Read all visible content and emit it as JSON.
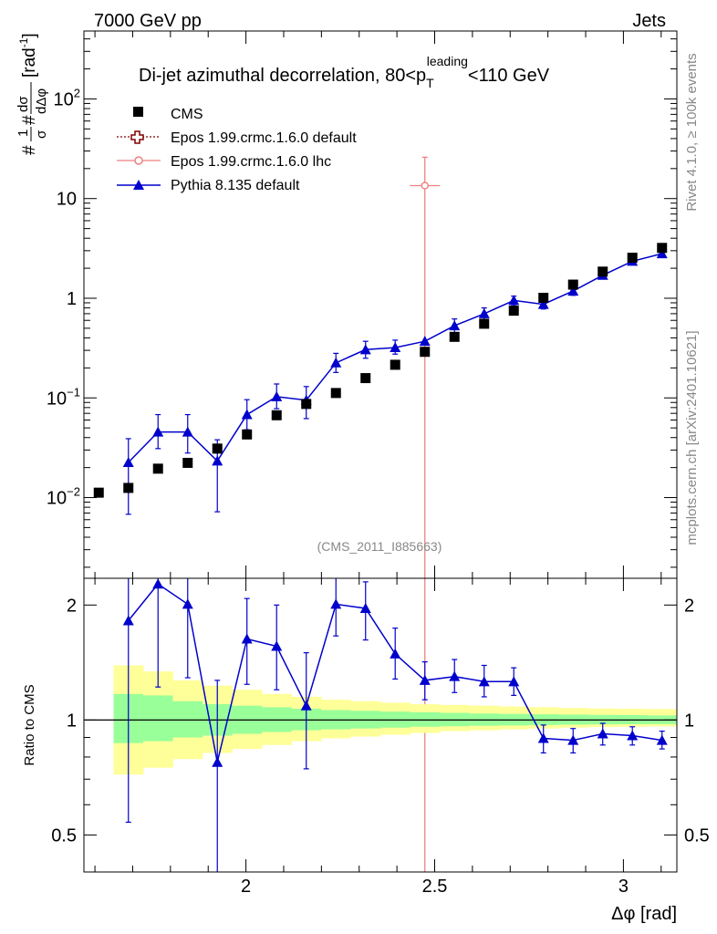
{
  "header": {
    "left": "7000 GeV pp",
    "right": "Jets"
  },
  "side_labels": {
    "rivet": "Rivet 4.1.0, ≥ 100k events",
    "mcplots": "mcplots.cern.ch [arXiv:2401.10621]"
  },
  "colors": {
    "cms": "#000000",
    "epos_default": "#7f0000",
    "epos_lhc": "#f08080",
    "pythia": "#0000cc",
    "band_outer": "#ffff99",
    "band_inner": "#99ff99"
  },
  "chart_data": [
    {
      "type": "scatter",
      "title": "Di-jet azimuthal decorrelation, 80<p_T^leading<110 GeV",
      "title_parts": {
        "prefix": "Di-jet azimuthal decorrelation, 80<p",
        "sub": "T",
        "sup": "leading",
        "suffix": "<110 GeV"
      },
      "ylabel": "#frac{1}{σ} #frac{dσ}{dΔφ} [rad⁻¹]",
      "ylabel_parts": {
        "one": "1",
        "sigma": "σ",
        "dsigma": "dσ",
        "ddphi": "dΔφ",
        "hash": "#",
        "unit": "[rad",
        "unit_sup": "-1",
        "unit_end": "]"
      },
      "yscale": "log",
      "ylim": [
        0.00155,
        480
      ],
      "xlim": [
        1.5708,
        3.1416
      ],
      "y_ticks": [
        {
          "v": 100,
          "label": "10",
          "sup": "2"
        },
        {
          "v": 10,
          "label": "10",
          "sup": ""
        },
        {
          "v": 1,
          "label": "1",
          "sup": ""
        },
        {
          "v": 0.1,
          "label": "10",
          "sup": "−1"
        },
        {
          "v": 0.01,
          "label": "10",
          "sup": "−2"
        }
      ],
      "watermark": "(CMS_2011_I885663)",
      "legend": [
        {
          "name": "CMS",
          "marker": "square"
        },
        {
          "name": "Epos 1.99.crmc.1.6.0 default",
          "marker": "open-cross"
        },
        {
          "name": "Epos 1.99.crmc.1.6.0 lhc",
          "marker": "open-circle"
        },
        {
          "name": "Pythia 8.135 default",
          "marker": "triangle"
        }
      ],
      "series": [
        {
          "name": "CMS",
          "x": [
            1.6101,
            1.6886,
            1.7671,
            1.8457,
            1.9242,
            2.0027,
            2.0813,
            2.1598,
            2.2384,
            2.3169,
            2.3954,
            2.474,
            2.5525,
            2.6311,
            2.7096,
            2.7881,
            2.8667,
            2.9452,
            3.0237,
            3.1023
          ],
          "y": [
            0.0112,
            0.0125,
            0.0195,
            0.0223,
            0.031,
            0.043,
            0.067,
            0.087,
            0.112,
            0.158,
            0.215,
            0.29,
            0.41,
            0.555,
            0.75,
            1.01,
            1.37,
            1.85,
            2.55,
            3.2
          ]
        },
        {
          "name": "Epos 1.99.crmc.1.6.0 lhc",
          "x": [
            2.474
          ],
          "y": [
            13.5
          ],
          "yerr_low": [
            0.00155
          ],
          "yerr_high": [
            26.0
          ],
          "xerr": [
            0.04
          ]
        },
        {
          "name": "Pythia 8.135 default",
          "x": [
            1.6886,
            1.7671,
            1.8457,
            1.9242,
            2.0027,
            2.0813,
            2.1598,
            2.2384,
            2.3169,
            2.3954,
            2.474,
            2.5525,
            2.6311,
            2.7096,
            2.7881,
            2.8667,
            2.9452,
            3.0237,
            3.1023
          ],
          "y": [
            0.0225,
            0.0455,
            0.0455,
            0.0233,
            0.068,
            0.103,
            0.095,
            0.225,
            0.305,
            0.32,
            0.37,
            0.53,
            0.7,
            0.95,
            0.87,
            1.18,
            1.7,
            2.35,
            2.8
          ],
          "ylow": [
            0.0068,
            0.031,
            0.028,
            0.0072,
            0.048,
            0.078,
            0.062,
            0.18,
            0.25,
            0.275,
            0.0,
            0.45,
            0.61,
            0.84,
            0.78,
            1.07,
            1.58,
            2.2,
            2.65
          ],
          "yhigh": [
            0.039,
            0.068,
            0.068,
            0.038,
            0.096,
            0.138,
            0.13,
            0.28,
            0.37,
            0.38,
            0.0,
            0.62,
            0.8,
            1.05,
            0.97,
            1.3,
            1.83,
            2.5,
            2.95
          ]
        }
      ]
    },
    {
      "type": "scatter",
      "ylabel": "Ratio to CMS",
      "yscale": "log",
      "ylim": [
        0.4,
        2.35
      ],
      "xlim": [
        1.5708,
        3.1416
      ],
      "xlabel": "Δφ [rad]",
      "x_ticks": [
        2,
        2.5,
        3
      ],
      "x_tick_labels": [
        "2",
        "2.5",
        "3"
      ],
      "y_ticks": [
        0.5,
        1,
        2
      ],
      "y_tick_labels": [
        "0.5",
        "1",
        "2"
      ],
      "band_x_edges": [
        1.6493,
        1.7279,
        1.8064,
        1.885,
        1.9635,
        2.042,
        2.1206,
        2.1991,
        2.2777,
        2.3562,
        2.4347,
        2.5133,
        2.5918,
        2.6704,
        2.7489,
        2.8274,
        2.906,
        2.9845,
        3.0631,
        3.1416
      ],
      "band_outer_low": [
        0.72,
        0.75,
        0.79,
        0.82,
        0.84,
        0.86,
        0.88,
        0.895,
        0.905,
        0.915,
        0.925,
        0.935,
        0.94,
        0.945,
        0.95,
        0.955,
        0.958,
        0.96,
        0.962
      ],
      "band_outer_high": [
        1.39,
        1.34,
        1.27,
        1.23,
        1.2,
        1.17,
        1.15,
        1.13,
        1.12,
        1.11,
        1.1,
        1.095,
        1.09,
        1.085,
        1.08,
        1.075,
        1.072,
        1.07,
        1.068
      ],
      "band_inner_low": [
        0.87,
        0.88,
        0.9,
        0.91,
        0.92,
        0.93,
        0.94,
        0.945,
        0.95,
        0.955,
        0.96,
        0.963,
        0.966,
        0.968,
        0.97,
        0.972,
        0.974,
        0.975,
        0.976
      ],
      "band_inner_high": [
        1.17,
        1.16,
        1.12,
        1.1,
        1.09,
        1.08,
        1.07,
        1.062,
        1.057,
        1.052,
        1.048,
        1.044,
        1.04,
        1.037,
        1.035,
        1.033,
        1.031,
        1.03,
        1.028
      ],
      "series": [
        {
          "name": "Pythia 8.135 default",
          "x": [
            1.6886,
            1.7671,
            1.8457,
            1.9242,
            2.0027,
            2.0813,
            2.1598,
            2.2384,
            2.3169,
            2.3954,
            2.474,
            2.5525,
            2.6311,
            2.7096,
            2.7881,
            2.8667,
            2.9452,
            3.0237,
            3.1023
          ],
          "y": [
            1.82,
            2.27,
            2.01,
            0.775,
            1.63,
            1.56,
            1.09,
            2.01,
            1.96,
            1.49,
            1.27,
            1.3,
            1.26,
            1.26,
            0.895,
            0.885,
            0.92,
            0.91,
            0.885
          ],
          "ylow": [
            0.54,
            1.22,
            1.29,
            0.35,
            1.24,
            1.2,
            0.745,
            1.66,
            1.62,
            1.28,
            1.13,
            1.18,
            1.15,
            1.16,
            0.82,
            0.82,
            0.86,
            0.86,
            0.84
          ],
          "yhigh": [
            2.35,
            2.35,
            2.35,
            1.27,
            2.08,
            2.0,
            1.5,
            2.35,
            2.3,
            1.74,
            1.42,
            1.44,
            1.39,
            1.37,
            0.97,
            0.95,
            0.98,
            0.96,
            0.935
          ]
        }
      ]
    }
  ]
}
